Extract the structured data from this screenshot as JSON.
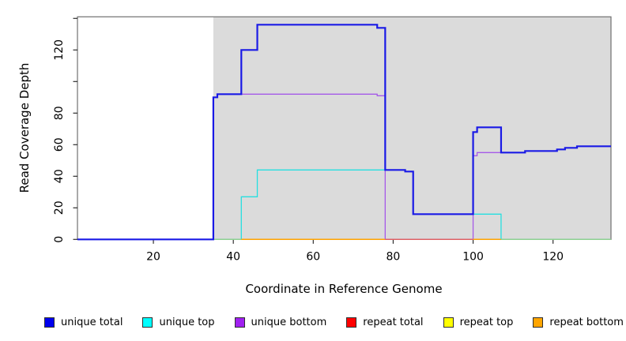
{
  "figure": {
    "background": "#ffffff",
    "shaded_background": "#DBDBDB",
    "box_color": "#707070",
    "tick_color": "#2e2e2e"
  },
  "chart_data": {
    "type": "line",
    "subtype": "step",
    "title": "",
    "xlabel": "Coordinate in Reference Genome",
    "ylabel": "Read Coverage Depth",
    "xlim": [
      1,
      134.5
    ],
    "ylim": [
      0,
      141
    ],
    "grid": false,
    "legend_position": "bottom",
    "x_ticks": [
      {
        "value": 20,
        "label": "20"
      },
      {
        "value": 40,
        "label": "40"
      },
      {
        "value": 60,
        "label": "60"
      },
      {
        "value": 80,
        "label": "80"
      },
      {
        "value": 100,
        "label": "100"
      },
      {
        "value": 120,
        "label": "120"
      }
    ],
    "y_ticks": [
      {
        "value": 0,
        "label": "0"
      },
      {
        "value": 20,
        "label": "20"
      },
      {
        "value": 40,
        "label": "40"
      },
      {
        "value": 60,
        "label": "60"
      },
      {
        "value": 80,
        "label": "80"
      },
      {
        "value": 100,
        "label": ""
      },
      {
        "value": 120,
        "label": "120"
      },
      {
        "value": 140,
        "label": ""
      }
    ],
    "shaded_region": {
      "x_start": 35,
      "x_end": 134.5,
      "color": "#DBDBDB"
    },
    "series": [
      {
        "name": "repeat top",
        "color": "#F2F200",
        "draw": 0,
        "width": 1.3,
        "steps": [
          [
            1,
            0
          ]
        ]
      },
      {
        "name": "repeat total",
        "color": "#EE2222",
        "draw": 1,
        "width": 1.3,
        "steps": [
          [
            1,
            0
          ]
        ]
      },
      {
        "name": "repeat bottom",
        "color": "#FFA500",
        "draw": 2,
        "width": 1.3,
        "steps": [
          [
            1,
            0
          ]
        ]
      },
      {
        "name": "unique top",
        "color": "#26DFE0",
        "draw": 3,
        "width": 1.3,
        "steps": [
          [
            1,
            0
          ],
          [
            42,
            27
          ],
          [
            46,
            44
          ],
          [
            83,
            43
          ],
          [
            85,
            16
          ],
          [
            107,
            0
          ]
        ]
      },
      {
        "name": "unique bottom",
        "color": "#A55AE8",
        "draw": 4,
        "width": 1.3,
        "steps": [
          [
            1,
            0
          ],
          [
            35,
            90
          ],
          [
            36,
            92
          ],
          [
            76,
            91
          ],
          [
            78,
            0
          ],
          [
            100,
            53
          ],
          [
            101,
            55
          ],
          [
            113,
            56
          ],
          [
            121,
            57
          ],
          [
            123,
            58
          ],
          [
            126,
            59
          ]
        ]
      },
      {
        "name": "unique total",
        "color": "#1A1AE6",
        "draw": 6,
        "width": 2.2,
        "steps": [
          [
            1,
            0
          ],
          [
            35,
            90
          ],
          [
            36,
            92
          ],
          [
            42,
            120
          ],
          [
            46,
            136
          ],
          [
            76,
            134
          ],
          [
            78,
            44
          ],
          [
            83,
            43
          ],
          [
            85,
            16
          ],
          [
            100,
            68
          ],
          [
            101,
            71
          ],
          [
            107,
            55
          ],
          [
            113,
            56
          ],
          [
            121,
            57
          ],
          [
            123,
            58
          ],
          [
            126,
            59
          ]
        ]
      }
    ],
    "baseline_segments": [
      {
        "from": 35,
        "to": 42,
        "color": "#8FD08F"
      },
      {
        "from": 42,
        "to": 78,
        "color": "#FFA500"
      },
      {
        "from": 78,
        "to": 100,
        "color": "#E06060"
      },
      {
        "from": 100,
        "to": 107,
        "color": "#FFA500"
      },
      {
        "from": 107,
        "to": 134.5,
        "color": "#8FD08F"
      }
    ]
  },
  "legend": {
    "items": [
      {
        "label": "unique total",
        "color": "#0000EE"
      },
      {
        "label": "unique top",
        "color": "#00FFFF"
      },
      {
        "label": "unique bottom",
        "color": "#A020F0"
      },
      {
        "label": "repeat total",
        "color": "#FF0000"
      },
      {
        "label": "repeat top",
        "color": "#FFFF00"
      },
      {
        "label": "repeat bottom",
        "color": "#FFA500"
      }
    ]
  }
}
